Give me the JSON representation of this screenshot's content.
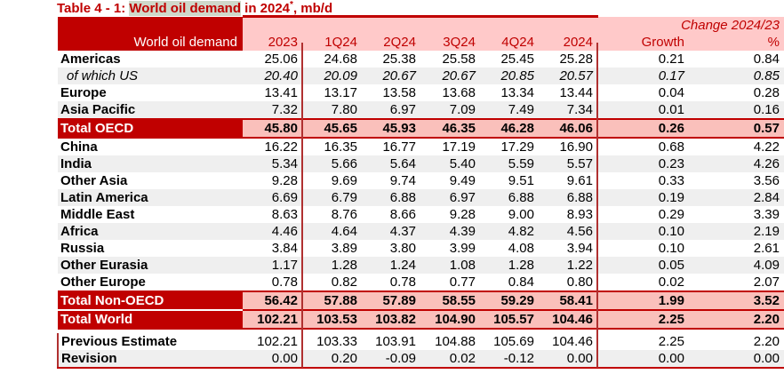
{
  "title": {
    "prefix": "Table 4 - 1: ",
    "highlighted": "World oil demand",
    "middle": " in 2024",
    "asterisk": "*",
    "suffix": ", mb/d"
  },
  "table": {
    "corner_label": "World oil demand",
    "change_group_label": "Change 2024/23",
    "column_headers": [
      "2023",
      "1Q24",
      "2Q24",
      "3Q24",
      "4Q24",
      "2024",
      "Growth",
      "%"
    ],
    "rows": [
      {
        "label": "Americas",
        "style": "normal",
        "values": [
          "25.06",
          "24.68",
          "25.38",
          "25.58",
          "25.45",
          "25.28",
          "0.21",
          "0.84"
        ]
      },
      {
        "label": "of which US",
        "style": "subitem",
        "values": [
          "20.40",
          "20.09",
          "20.67",
          "20.67",
          "20.85",
          "20.57",
          "0.17",
          "0.85"
        ]
      },
      {
        "label": "Europe",
        "style": "normal",
        "values": [
          "13.41",
          "13.17",
          "13.58",
          "13.68",
          "13.34",
          "13.44",
          "0.04",
          "0.28"
        ]
      },
      {
        "label": "Asia Pacific",
        "style": "normal",
        "values": [
          "7.32",
          "7.80",
          "6.97",
          "7.09",
          "7.49",
          "7.34",
          "0.01",
          "0.16"
        ]
      },
      {
        "label": "Total OECD",
        "style": "total",
        "values": [
          "45.80",
          "45.65",
          "45.93",
          "46.35",
          "46.28",
          "46.06",
          "0.26",
          "0.57"
        ]
      },
      {
        "label": "China",
        "style": "normal",
        "values": [
          "16.22",
          "16.35",
          "16.77",
          "17.19",
          "17.29",
          "16.90",
          "0.68",
          "4.22"
        ]
      },
      {
        "label": "India",
        "style": "normal",
        "values": [
          "5.34",
          "5.66",
          "5.64",
          "5.40",
          "5.59",
          "5.57",
          "0.23",
          "4.26"
        ]
      },
      {
        "label": "Other Asia",
        "style": "normal",
        "values": [
          "9.28",
          "9.69",
          "9.74",
          "9.49",
          "9.51",
          "9.61",
          "0.33",
          "3.56"
        ]
      },
      {
        "label": "Latin America",
        "style": "normal",
        "values": [
          "6.69",
          "6.79",
          "6.88",
          "6.97",
          "6.88",
          "6.88",
          "0.19",
          "2.84"
        ]
      },
      {
        "label": "Middle East",
        "style": "normal",
        "values": [
          "8.63",
          "8.76",
          "8.66",
          "9.28",
          "9.00",
          "8.93",
          "0.29",
          "3.39"
        ]
      },
      {
        "label": "Africa",
        "style": "normal",
        "values": [
          "4.46",
          "4.64",
          "4.37",
          "4.39",
          "4.82",
          "4.56",
          "0.10",
          "2.19"
        ]
      },
      {
        "label": "Russia",
        "style": "normal",
        "values": [
          "3.84",
          "3.89",
          "3.80",
          "3.99",
          "4.08",
          "3.94",
          "0.10",
          "2.61"
        ]
      },
      {
        "label": "Other Eurasia",
        "style": "normal",
        "values": [
          "1.17",
          "1.28",
          "1.24",
          "1.08",
          "1.28",
          "1.22",
          "0.05",
          "4.09"
        ]
      },
      {
        "label": "Other Europe",
        "style": "normal",
        "values": [
          "0.78",
          "0.82",
          "0.78",
          "0.77",
          "0.84",
          "0.80",
          "0.02",
          "2.07"
        ]
      },
      {
        "label": "Total Non-OECD",
        "style": "total",
        "values": [
          "56.42",
          "57.88",
          "57.89",
          "58.55",
          "59.29",
          "58.41",
          "1.99",
          "3.52"
        ]
      },
      {
        "label": "Total World",
        "style": "total",
        "values": [
          "102.21",
          "103.53",
          "103.82",
          "104.90",
          "105.57",
          "104.46",
          "2.25",
          "2.20"
        ]
      },
      {
        "label": "Previous Estimate",
        "style": "footer",
        "values": [
          "102.21",
          "103.33",
          "103.91",
          "104.88",
          "105.69",
          "104.46",
          "2.25",
          "2.20"
        ]
      },
      {
        "label": "Revision",
        "style": "footer",
        "values": [
          "0.00",
          "0.20",
          "-0.09",
          "0.02",
          "-0.12",
          "0.00",
          "0.00",
          "0.00"
        ]
      }
    ]
  },
  "colors": {
    "dark_red": "#C00000",
    "header_pink": "#FFC9C9",
    "totals_pink": "#FAC0BB",
    "stripe_gray": "#EFEFEF",
    "separator_line_red": "#B03030",
    "title_highlight": "#CFD8CA"
  }
}
